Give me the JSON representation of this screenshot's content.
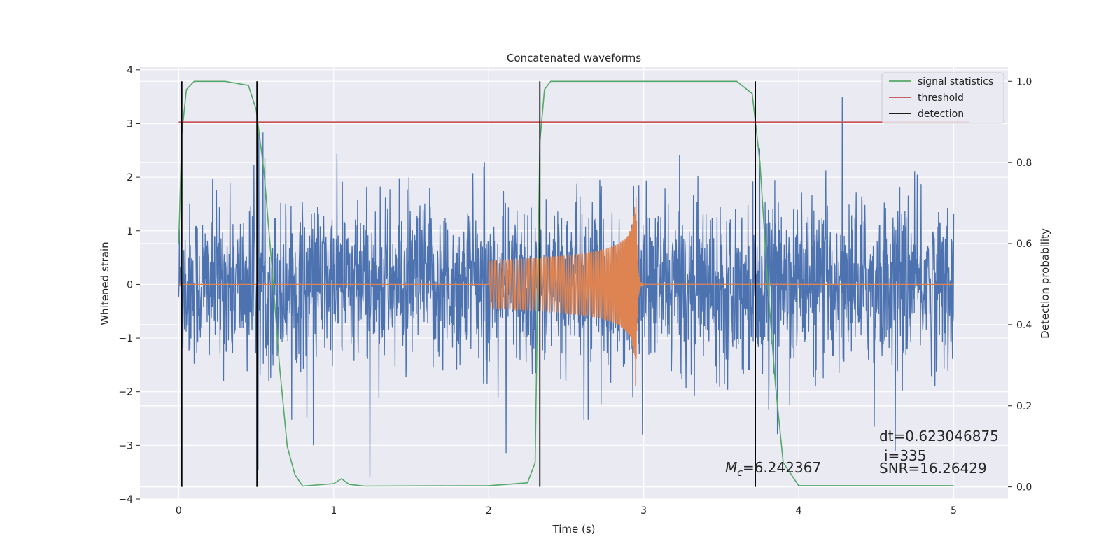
{
  "chart_data": {
    "type": "line",
    "title": "Concatenated waveforms",
    "xlabel": "Time (s)",
    "ylabel": "Whitened strain",
    "y2label": "Detection probability",
    "xlim": [
      -0.25,
      5.35
    ],
    "ylim": [
      -4,
      4.05
    ],
    "y2lim": [
      -0.03,
      1.035
    ],
    "xticks": [
      0,
      1,
      2,
      3,
      4,
      5
    ],
    "yticks": [
      -4,
      -3,
      -2,
      -1,
      0,
      1,
      2,
      3,
      4
    ],
    "y2ticks": [
      0.0,
      0.2,
      0.4,
      0.6,
      0.8,
      1.0
    ],
    "grid": true,
    "legend_position": "upper right",
    "colors": {
      "strain": "#4c72b0",
      "template": "#dd8452",
      "signal_statistics": "#55a868",
      "threshold": "#c44e52",
      "detection": "#000000",
      "background": "#eaeaf2"
    },
    "series": [
      {
        "name": "signal statistics",
        "axis": "y2",
        "x": [
          0,
          0.02,
          0.05,
          0.1,
          0.3,
          0.45,
          0.5,
          0.55,
          0.6,
          0.65,
          0.7,
          0.75,
          0.8,
          1.0,
          1.05,
          1.1,
          1.2,
          2.0,
          2.25,
          2.3,
          2.33,
          2.36,
          2.4,
          2.5,
          3.6,
          3.7,
          3.75,
          3.8,
          3.85,
          3.9,
          4.0,
          5.0
        ],
        "y": [
          0.6,
          0.87,
          0.98,
          1.0,
          1.0,
          0.99,
          0.93,
          0.78,
          0.55,
          0.3,
          0.1,
          0.03,
          0.002,
          0.008,
          0.02,
          0.006,
          0.002,
          0.003,
          0.01,
          0.06,
          0.85,
          0.98,
          1.0,
          1.0,
          1.0,
          0.97,
          0.8,
          0.5,
          0.25,
          0.06,
          0.003,
          0.003
        ]
      },
      {
        "name": "threshold",
        "axis": "y2",
        "x": [
          0,
          5.1
        ],
        "y": [
          0.9,
          0.9
        ]
      }
    ],
    "detection_lines": {
      "name": "detection",
      "x": [
        0.02,
        0.505,
        2.33,
        3.72
      ],
      "y2_range": [
        0.0,
        1.0
      ]
    },
    "strain_noise": {
      "x_range": [
        0,
        5
      ],
      "typical_amplitude": 1.2,
      "peak_range": [
        -3.6,
        3.5
      ]
    },
    "template_waveform": {
      "x_range": [
        2.0,
        3.0
      ],
      "merger_time": 2.95,
      "start_amplitude": 0.45,
      "peak_amplitude": 1.9
    },
    "legend": [
      "signal statistics",
      "threshold",
      "detection"
    ],
    "annotations": {
      "mc": "=6.242367",
      "dt": "dt=0.623046875",
      "i": "i=335",
      "snr": "SNR=16.26429"
    }
  }
}
